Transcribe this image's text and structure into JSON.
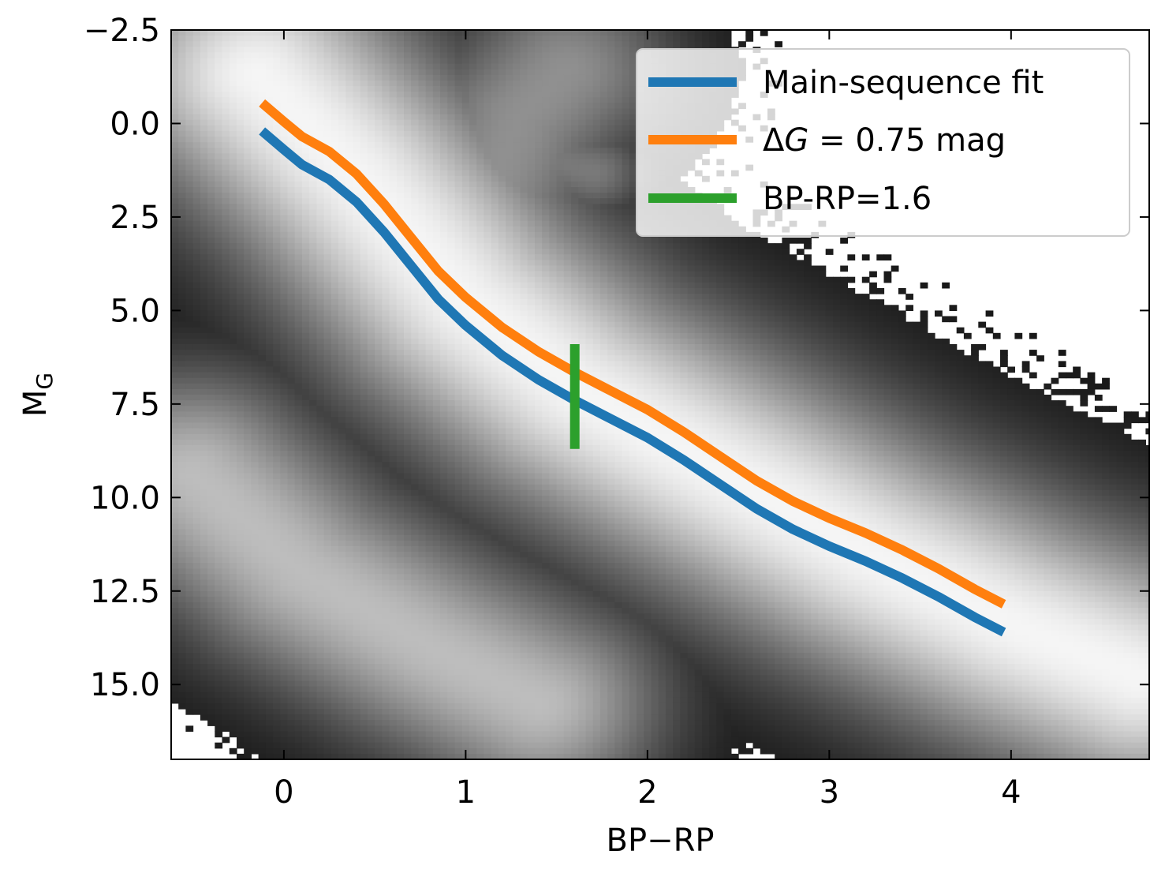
{
  "chart_data": {
    "type": "scatter",
    "plot_style": "2d density histogram, grayscale (Hertzsprung-Russell diagram)",
    "xlabel": "BP−RP",
    "ylabel_main": "M",
    "ylabel_sub": "G",
    "xlim": [
      -0.62,
      4.76
    ],
    "ylim": [
      17.0,
      -2.5
    ],
    "y_inverted": true,
    "x_ticks": [
      0,
      1,
      2,
      3,
      4
    ],
    "x_tick_labels": [
      "0",
      "1",
      "2",
      "3",
      "4"
    ],
    "y_ticks": [
      -2.5,
      0.0,
      2.5,
      5.0,
      7.5,
      10.0,
      12.5,
      15.0
    ],
    "y_tick_labels": [
      "−2.5",
      "0.0",
      "2.5",
      "5.0",
      "7.5",
      "10.0",
      "12.5",
      "15.0"
    ],
    "grid": false,
    "legend_position": "top-right",
    "series": [
      {
        "name": "Main-sequence fit",
        "color": "#1f77b4",
        "x": [
          -0.12,
          0.0,
          0.1,
          0.25,
          0.4,
          0.55,
          0.7,
          0.85,
          1.0,
          1.2,
          1.4,
          1.6,
          1.8,
          2.0,
          2.2,
          2.4,
          2.6,
          2.8,
          3.0,
          3.2,
          3.4,
          3.6,
          3.8,
          3.96
        ],
        "y": [
          0.2,
          0.7,
          1.1,
          1.5,
          2.1,
          2.9,
          3.8,
          4.7,
          5.4,
          6.2,
          6.85,
          7.4,
          7.9,
          8.4,
          9.0,
          9.65,
          10.3,
          10.85,
          11.3,
          11.7,
          12.15,
          12.65,
          13.2,
          13.6
        ]
      },
      {
        "name": "ΔG = 0.75 mag",
        "label_prefix": "Δ",
        "label_italic": "G",
        "label_suffix": " = 0.75 mag",
        "color": "#ff7f0e",
        "x": [
          -0.12,
          0.0,
          0.1,
          0.25,
          0.4,
          0.55,
          0.7,
          0.85,
          1.0,
          1.2,
          1.4,
          1.6,
          1.8,
          2.0,
          2.2,
          2.4,
          2.6,
          2.8,
          3.0,
          3.2,
          3.4,
          3.6,
          3.8,
          3.96
        ],
        "y": [
          -0.55,
          -0.05,
          0.35,
          0.75,
          1.35,
          2.15,
          3.05,
          3.95,
          4.65,
          5.45,
          6.1,
          6.65,
          7.15,
          7.65,
          8.25,
          8.9,
          9.55,
          10.1,
          10.55,
          10.95,
          11.4,
          11.9,
          12.45,
          12.85
        ]
      },
      {
        "name": "BP-RP=1.6",
        "color": "#2ca02c",
        "x": [
          1.6,
          1.6
        ],
        "y": [
          5.9,
          8.7
        ]
      }
    ],
    "density_features": [
      {
        "name": "main-sequence",
        "points": [
          [
            -0.15,
            -1.3
          ],
          [
            0.4,
            1.4
          ],
          [
            1.0,
            4.8
          ],
          [
            1.6,
            7.1
          ],
          [
            2.4,
            9.3
          ],
          [
            3.2,
            11.5
          ],
          [
            4.0,
            13.4
          ],
          [
            4.7,
            14.8
          ]
        ],
        "width": 1.2,
        "density": 1.0
      },
      {
        "name": "giant-branch",
        "points": [
          [
            1.0,
            4.0
          ],
          [
            1.15,
            1.6
          ],
          [
            1.3,
            -0.2
          ],
          [
            1.55,
            -1.4
          ]
        ],
        "width": 0.9,
        "density": 0.55
      },
      {
        "name": "red-clump",
        "points": [
          [
            1.1,
            0.4
          ],
          [
            1.7,
            1.3
          ]
        ],
        "width": 0.45,
        "density": 0.45
      },
      {
        "name": "white-dwarf-sequence",
        "points": [
          [
            -0.5,
            9.4
          ],
          [
            0.1,
            12.0
          ],
          [
            0.8,
            14.0
          ],
          [
            1.4,
            15.5
          ]
        ],
        "width": 1.0,
        "density": 0.75
      }
    ]
  }
}
